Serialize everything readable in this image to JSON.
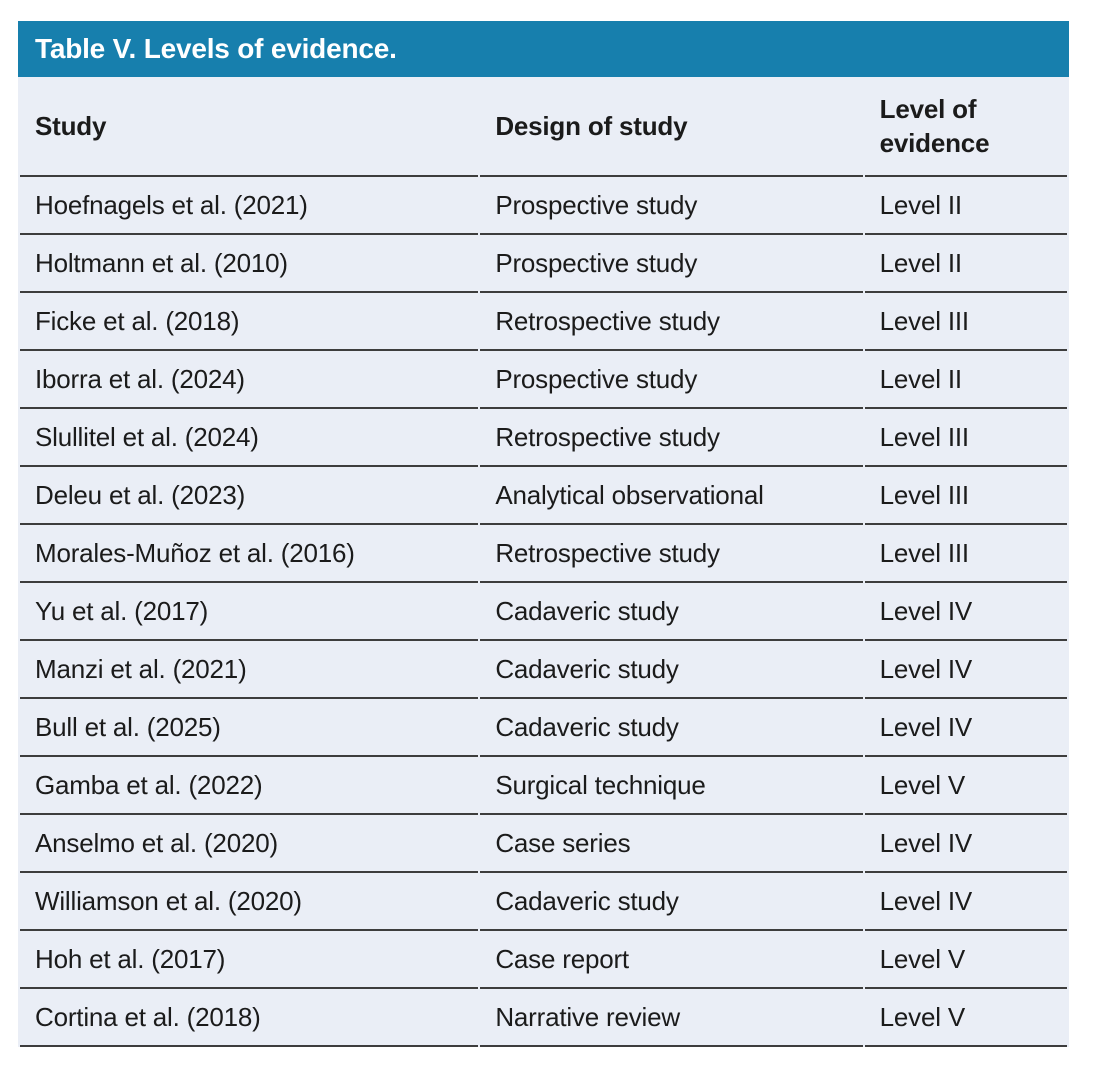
{
  "table": {
    "title": "Table V. Levels of evidence.",
    "columns": {
      "study": "Study",
      "design": "Design of study",
      "level": "Level of evidence"
    },
    "rows": [
      {
        "study": "Hoefnagels et al. (2021)",
        "design": "Prospective study",
        "level": "Level II"
      },
      {
        "study": "Holtmann et al. (2010)",
        "design": "Prospective study",
        "level": "Level II"
      },
      {
        "study": "Ficke et al. (2018)",
        "design": "Retrospective study",
        "level": "Level III"
      },
      {
        "study": "Iborra et al. (2024)",
        "design": "Prospective study",
        "level": "Level II"
      },
      {
        "study": "Slullitel et al. (2024)",
        "design": "Retrospective study",
        "level": "Level III"
      },
      {
        "study": "Deleu et al. (2023)",
        "design": "Analytical observational",
        "level": "Level III"
      },
      {
        "study": "Morales-Muñoz et al. (2016)",
        "design": "Retrospective study",
        "level": "Level III"
      },
      {
        "study": "Yu et al. (2017)",
        "design": "Cadaveric study",
        "level": "Level IV"
      },
      {
        "study": "Manzi et al. (2021)",
        "design": "Cadaveric study",
        "level": "Level IV"
      },
      {
        "study": "Bull et al. (2025)",
        "design": "Cadaveric study",
        "level": "Level IV"
      },
      {
        "study": "Gamba et al. (2022)",
        "design": "Surgical technique",
        "level": "Level V"
      },
      {
        "study": "Anselmo et al. (2020)",
        "design": "Case series",
        "level": "Level IV"
      },
      {
        "study": "Williamson et al. (2020)",
        "design": "Cadaveric study",
        "level": "Level IV"
      },
      {
        "study": "Hoh et al. (2017)",
        "design": "Case report",
        "level": "Level V"
      },
      {
        "study": "Cortina et al. (2018)",
        "design": "Narrative review",
        "level": "Level V"
      }
    ],
    "colors": {
      "header_bar": "#177FAD",
      "row_background": "#EAEEF6",
      "border": "#3D3D3D",
      "title_text": "#FFFFFF",
      "body_text": "#1B1B1B"
    }
  }
}
